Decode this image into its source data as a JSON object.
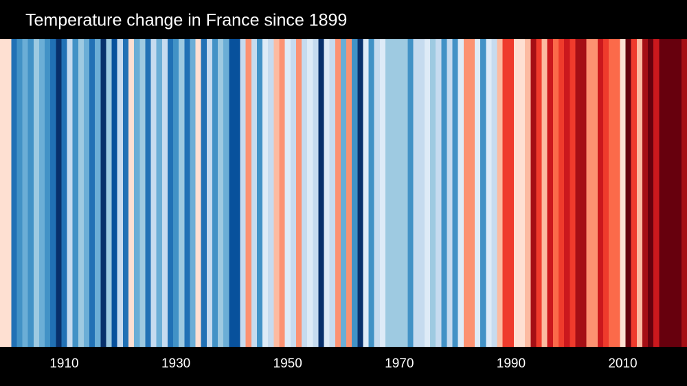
{
  "chart_data": {
    "type": "stripes",
    "title": "Temperature change in France since 1899",
    "x": [
      1899,
      1900,
      1901,
      1902,
      1903,
      1904,
      1905,
      1906,
      1907,
      1908,
      1909,
      1910,
      1911,
      1912,
      1913,
      1914,
      1915,
      1916,
      1917,
      1918,
      1919,
      1920,
      1921,
      1922,
      1923,
      1924,
      1925,
      1926,
      1927,
      1928,
      1929,
      1930,
      1931,
      1932,
      1933,
      1934,
      1935,
      1936,
      1937,
      1938,
      1939,
      1940,
      1941,
      1942,
      1943,
      1944,
      1945,
      1946,
      1947,
      1948,
      1949,
      1950,
      1951,
      1952,
      1953,
      1954,
      1955,
      1956,
      1957,
      1958,
      1959,
      1960,
      1961,
      1962,
      1963,
      1964,
      1965,
      1966,
      1967,
      1968,
      1969,
      1970,
      1971,
      1972,
      1973,
      1974,
      1975,
      1976,
      1977,
      1978,
      1979,
      1980,
      1981,
      1982,
      1983,
      1984,
      1985,
      1986,
      1987,
      1988,
      1989,
      1990,
      1991,
      1992,
      1993,
      1994,
      1995,
      1996,
      1997,
      1998,
      1999,
      2000,
      2001,
      2002,
      2003,
      2004,
      2005,
      2006,
      2007,
      2008,
      2009,
      2010,
      2011,
      2012,
      2013,
      2014,
      2015,
      2016,
      2017,
      2018,
      2019,
      2020,
      2021
    ],
    "values": [
      0.1,
      0.1,
      -1.1,
      -0.9,
      -0.7,
      -0.9,
      -0.5,
      -0.7,
      -0.9,
      -1.1,
      -1.5,
      -1.1,
      -0.3,
      -0.9,
      -0.5,
      -0.7,
      -1.1,
      -0.7,
      -1.5,
      -0.5,
      -1.3,
      -0.3,
      -1.1,
      0.1,
      -0.7,
      -0.5,
      -1.1,
      -0.3,
      -0.7,
      -0.3,
      -1.1,
      -0.9,
      -0.5,
      -1.1,
      -0.7,
      0.1,
      -1.1,
      -0.3,
      -0.9,
      -0.5,
      -0.7,
      -1.3,
      -1.3,
      -0.3,
      0.5,
      -0.3,
      -0.9,
      -0.1,
      -0.3,
      0.3,
      0.5,
      -0.1,
      -0.3,
      0.5,
      -0.3,
      -0.1,
      -0.3,
      -1.5,
      -0.1,
      -0.3,
      0.5,
      -0.7,
      0.5,
      -0.9,
      -1.5,
      -0.1,
      -0.9,
      -0.3,
      -0.1,
      -0.5,
      -0.5,
      -0.5,
      -0.5,
      -0.9,
      -0.3,
      -0.3,
      -0.1,
      -0.5,
      -0.3,
      -0.9,
      -0.3,
      -0.9,
      -0.1,
      0.5,
      0.5,
      -0.1,
      -0.9,
      -0.1,
      -0.3,
      0.3,
      0.9,
      0.9,
      0.1,
      0.1,
      0.3,
      1.3,
      0.9,
      0.3,
      1.1,
      0.7,
      0.9,
      1.1,
      0.9,
      1.3,
      1.3,
      0.5,
      0.5,
      1.1,
      0.9,
      0.7,
      0.7,
      0.1,
      1.5,
      0.9,
      0.3,
      1.3,
      1.5,
      1.1,
      1.5,
      1.5,
      1.5,
      1.5,
      1.3
    ],
    "color_scale": {
      "domain": [
        -1.6,
        1.6
      ],
      "colors": [
        "#08306b",
        "#08519c",
        "#2171b5",
        "#4292c6",
        "#6baed6",
        "#9ecae1",
        "#c6dbef",
        "#deebf7",
        "#fee0d2",
        "#fcbba1",
        "#fc9272",
        "#fb6a4a",
        "#ef3b2c",
        "#cb181d",
        "#a50f15",
        "#67000d"
      ]
    },
    "xlim": [
      1898.5,
      2021.5
    ],
    "xticks": [
      1910,
      1930,
      1950,
      1970,
      1990,
      2010
    ]
  }
}
